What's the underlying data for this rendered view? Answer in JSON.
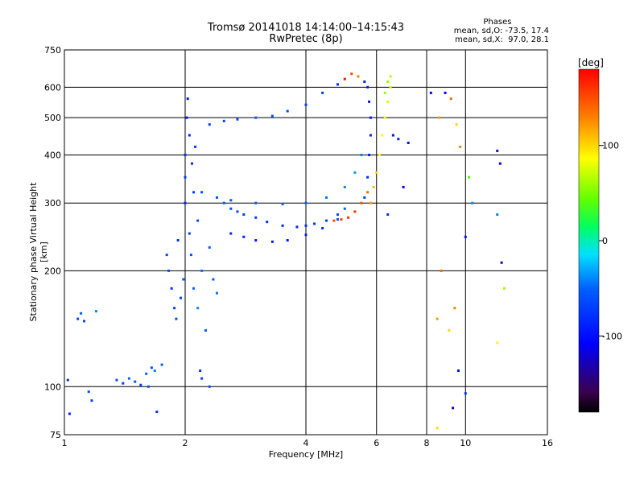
{
  "chart_data": {
    "type": "scatter",
    "title": "Tromsø 20141018 14:14:00–14:15:43",
    "subtitle": "RwPretec (8p)",
    "xlabel": "Frequency [MHz]",
    "ylabel": "Stationary phase Virtual Height [km]",
    "x_scale": "log",
    "y_scale": "log",
    "xlim": [
      1,
      16
    ],
    "ylim": [
      75,
      750
    ],
    "x_ticks": [
      1,
      2,
      4,
      6,
      8,
      10,
      16
    ],
    "y_ticks": [
      75,
      100,
      200,
      300,
      400,
      500,
      600,
      750
    ],
    "grid": true,
    "phases_header": "Phases",
    "phases_line1": "mean, sd,O: -73.5, 17.4",
    "phases_line2": "mean, sd,X:  97.0, 28.1",
    "colorbar": {
      "unit": "[deg]",
      "ticks": [
        100,
        0,
        -100
      ],
      "range": [
        -180,
        180
      ]
    },
    "series": [
      {
        "points": [
          [
            1.02,
            104,
            -80
          ],
          [
            1.03,
            85,
            -90
          ],
          [
            1.08,
            150,
            -60
          ],
          [
            1.1,
            155,
            -50
          ],
          [
            1.12,
            148,
            -70
          ],
          [
            1.15,
            97,
            -60
          ],
          [
            1.17,
            92,
            -70
          ],
          [
            1.2,
            157,
            -40
          ],
          [
            1.35,
            104,
            -60
          ],
          [
            1.4,
            102,
            -70
          ],
          [
            1.45,
            105,
            -50
          ],
          [
            1.5,
            103,
            -60
          ],
          [
            1.55,
            101,
            -70
          ],
          [
            1.6,
            108,
            -50
          ],
          [
            1.62,
            100,
            -60
          ],
          [
            1.65,
            112,
            -60
          ],
          [
            1.68,
            110,
            -40
          ],
          [
            1.7,
            86,
            -80
          ],
          [
            1.75,
            114,
            -50
          ],
          [
            1.8,
            220,
            -70
          ],
          [
            1.82,
            200,
            -60
          ],
          [
            1.85,
            180,
            -80
          ],
          [
            1.88,
            160,
            -70
          ],
          [
            1.9,
            150,
            -60
          ],
          [
            1.92,
            240,
            -75
          ],
          [
            1.95,
            170,
            -65
          ],
          [
            1.98,
            190,
            -55
          ],
          [
            2.0,
            300,
            -85
          ],
          [
            2.0,
            350,
            -75
          ],
          [
            2.0,
            400,
            -80
          ],
          [
            2.02,
            500,
            -90
          ],
          [
            2.03,
            560,
            -95
          ],
          [
            2.05,
            450,
            -85
          ],
          [
            2.05,
            250,
            -70
          ],
          [
            2.07,
            220,
            -60
          ],
          [
            2.08,
            380,
            -80
          ],
          [
            2.1,
            180,
            -50
          ],
          [
            2.1,
            320,
            -70
          ],
          [
            2.12,
            420,
            -75
          ],
          [
            2.15,
            160,
            -40
          ],
          [
            2.15,
            270,
            -65
          ],
          [
            2.18,
            110,
            -80
          ],
          [
            2.2,
            105,
            -70
          ],
          [
            2.2,
            200,
            -45
          ],
          [
            2.25,
            140,
            -50
          ],
          [
            2.3,
            100,
            -60
          ],
          [
            2.3,
            230,
            -50
          ],
          [
            2.35,
            190,
            -55
          ],
          [
            2.4,
            175,
            -45
          ],
          [
            2.5,
            300,
            -55
          ],
          [
            2.6,
            290,
            -60
          ],
          [
            2.7,
            285,
            -65
          ],
          [
            2.8,
            280,
            -70
          ],
          [
            3.0,
            275,
            -75
          ],
          [
            3.2,
            268,
            -80
          ],
          [
            3.5,
            262,
            -85
          ],
          [
            3.8,
            260,
            -85
          ],
          [
            4.0,
            262,
            -80
          ],
          [
            4.2,
            265,
            -75
          ],
          [
            4.5,
            270,
            -70
          ],
          [
            4.8,
            280,
            -60
          ],
          [
            5.0,
            290,
            -50
          ],
          [
            2.6,
            250,
            -90
          ],
          [
            2.8,
            245,
            -92
          ],
          [
            3.0,
            240,
            -95
          ],
          [
            3.3,
            238,
            -95
          ],
          [
            3.6,
            240,
            -92
          ],
          [
            4.0,
            248,
            -88
          ],
          [
            4.4,
            258,
            -80
          ],
          [
            4.8,
            272,
            -60
          ],
          [
            2.2,
            320,
            -60
          ],
          [
            2.4,
            310,
            -62
          ],
          [
            2.6,
            305,
            -58
          ],
          [
            3.0,
            300,
            -55
          ],
          [
            3.5,
            298,
            -52
          ],
          [
            4.0,
            300,
            -50
          ],
          [
            4.5,
            310,
            -45
          ],
          [
            5.0,
            330,
            -40
          ],
          [
            5.3,
            360,
            -35
          ],
          [
            5.5,
            400,
            -40
          ],
          [
            2.3,
            480,
            -70
          ],
          [
            2.5,
            490,
            -65
          ],
          [
            2.7,
            495,
            -60
          ],
          [
            3.0,
            500,
            -55
          ],
          [
            3.3,
            505,
            -60
          ],
          [
            3.6,
            520,
            -65
          ],
          [
            4.0,
            540,
            -70
          ],
          [
            4.4,
            580,
            -75
          ],
          [
            4.8,
            610,
            -80
          ],
          [
            5.0,
            630,
            170
          ],
          [
            5.2,
            650,
            150
          ],
          [
            5.4,
            640,
            130
          ],
          [
            5.6,
            620,
            -90
          ],
          [
            5.7,
            600,
            -90
          ],
          [
            5.75,
            550,
            -95
          ],
          [
            5.8,
            500,
            -95
          ],
          [
            5.8,
            450,
            -90
          ],
          [
            5.75,
            400,
            -85
          ],
          [
            5.7,
            350,
            -80
          ],
          [
            5.6,
            310,
            -70
          ],
          [
            4.7,
            270,
            150
          ],
          [
            4.9,
            272,
            155
          ],
          [
            5.1,
            275,
            160
          ],
          [
            5.3,
            285,
            160
          ],
          [
            5.5,
            300,
            150
          ],
          [
            5.7,
            320,
            140
          ],
          [
            5.8,
            300,
            120
          ],
          [
            5.9,
            330,
            110
          ],
          [
            6.0,
            360,
            100
          ],
          [
            6.1,
            400,
            90
          ],
          [
            6.2,
            450,
            85
          ],
          [
            6.3,
            500,
            80
          ],
          [
            6.4,
            550,
            75
          ],
          [
            6.5,
            600,
            70
          ],
          [
            6.5,
            640,
            65
          ],
          [
            6.4,
            620,
            60
          ],
          [
            6.3,
            580,
            55
          ],
          [
            6.6,
            450,
            -100
          ],
          [
            6.8,
            440,
            -95
          ],
          [
            7.2,
            430,
            -100
          ],
          [
            7.0,
            330,
            -110
          ],
          [
            6.4,
            280,
            -80
          ],
          [
            8.6,
            500,
            120
          ],
          [
            8.9,
            580,
            -110
          ],
          [
            9.2,
            560,
            140
          ],
          [
            9.5,
            480,
            100
          ],
          [
            9.7,
            420,
            130
          ],
          [
            10.2,
            350,
            40
          ],
          [
            10.4,
            300,
            -40
          ],
          [
            12.0,
            410,
            -120
          ],
          [
            12.2,
            380,
            -110
          ],
          [
            12.0,
            280,
            -40
          ],
          [
            12.3,
            210,
            -130
          ],
          [
            12.5,
            180,
            60
          ],
          [
            12.0,
            130,
            90
          ],
          [
            8.2,
            580,
            -110
          ],
          [
            8.7,
            200,
            140
          ],
          [
            8.5,
            150,
            120
          ],
          [
            9.1,
            140,
            100
          ],
          [
            9.4,
            160,
            130
          ],
          [
            9.6,
            110,
            -100
          ],
          [
            9.3,
            88,
            -130
          ],
          [
            8.5,
            78,
            100
          ],
          [
            10.0,
            96,
            -80
          ],
          [
            10.0,
            245,
            -100
          ]
        ]
      }
    ]
  }
}
